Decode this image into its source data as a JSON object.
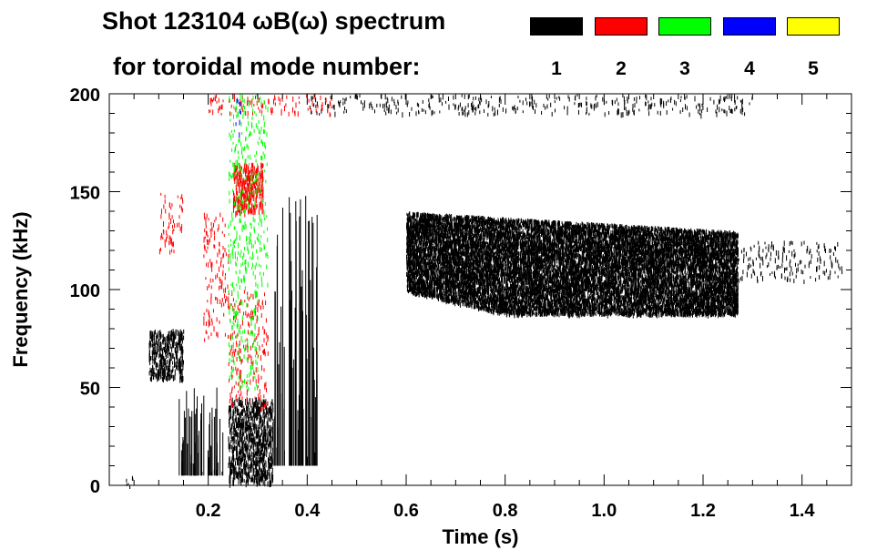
{
  "title": {
    "line1": "Shot 123104 ωB(ω) spectrum",
    "line2": "for toroidal mode number:"
  },
  "legend": {
    "placement": "top-right",
    "entries": [
      {
        "label": "1",
        "color": "#000000"
      },
      {
        "label": "2",
        "color": "#ff0000"
      },
      {
        "label": "3",
        "color": "#00ff00"
      },
      {
        "label": "4",
        "color": "#0000ff"
      },
      {
        "label": "5",
        "color": "#ffff00"
      }
    ]
  },
  "chart_data": {
    "type": "heatmap",
    "xlabel": "Time (s)",
    "ylabel": "Frequency (kHz)",
    "xlim": [
      0.0,
      1.5
    ],
    "ylim": [
      0,
      200
    ],
    "xticks": [
      {
        "value": 0.2,
        "label": "0.2"
      },
      {
        "value": 0.4,
        "label": "0.4"
      },
      {
        "value": 0.6,
        "label": "0.6"
      },
      {
        "value": 0.8,
        "label": "0.8"
      },
      {
        "value": 1.0,
        "label": "1.0"
      },
      {
        "value": 1.2,
        "label": "1.2"
      },
      {
        "value": 1.4,
        "label": "1.4"
      }
    ],
    "yticks": [
      {
        "value": 0,
        "label": "0"
      },
      {
        "value": 50,
        "label": "50"
      },
      {
        "value": 100,
        "label": "100"
      },
      {
        "value": 150,
        "label": "150"
      },
      {
        "value": 200,
        "label": "200"
      }
    ],
    "grid": false,
    "regions": [
      {
        "mode": "1",
        "color": "#000000",
        "t": [
          0.08,
          0.15
        ],
        "f": [
          55,
          80
        ],
        "style": "dense"
      },
      {
        "mode": "1",
        "color": "#000000",
        "t": [
          0.14,
          0.23
        ],
        "f": [
          5,
          50
        ],
        "style": "lines"
      },
      {
        "mode": "1",
        "color": "#000000",
        "t": [
          0.24,
          0.33
        ],
        "f": [
          2,
          45
        ],
        "style": "dense"
      },
      {
        "mode": "1",
        "color": "#000000",
        "t": [
          0.33,
          0.42
        ],
        "f": [
          10,
          150
        ],
        "style": "lines"
      },
      {
        "mode": "1",
        "color": "#000000",
        "t": [
          0.02,
          0.05
        ],
        "f": [
          0,
          5
        ],
        "style": "sparse"
      },
      {
        "mode": "1",
        "color": "#000000",
        "t": [
          0.4,
          1.3
        ],
        "f": [
          190,
          200
        ],
        "style": "sparse"
      },
      {
        "mode": "1",
        "color": "#000000",
        "t": [
          0.6,
          1.27
        ],
        "f": [
          85,
          140
        ],
        "style": "dense-band"
      },
      {
        "mode": "1",
        "color": "#000000",
        "t": [
          1.27,
          1.48
        ],
        "f": [
          105,
          125
        ],
        "style": "sparse"
      },
      {
        "mode": "2",
        "color": "#ff0000",
        "t": [
          0.1,
          0.15
        ],
        "f": [
          120,
          150
        ],
        "style": "sparse"
      },
      {
        "mode": "2",
        "color": "#ff0000",
        "t": [
          0.19,
          0.24
        ],
        "f": [
          75,
          140
        ],
        "style": "sparse"
      },
      {
        "mode": "2",
        "color": "#ff0000",
        "t": [
          0.25,
          0.31
        ],
        "f": [
          140,
          165
        ],
        "style": "dense"
      },
      {
        "mode": "2",
        "color": "#ff0000",
        "t": [
          0.24,
          0.32
        ],
        "f": [
          40,
          100
        ],
        "style": "sparse"
      },
      {
        "mode": "2",
        "color": "#ff0000",
        "t": [
          0.2,
          0.45
        ],
        "f": [
          190,
          200
        ],
        "style": "sparse"
      },
      {
        "mode": "3",
        "color": "#00ff00",
        "t": [
          0.24,
          0.32
        ],
        "f": [
          100,
          200
        ],
        "style": "sparse"
      },
      {
        "mode": "3",
        "color": "#00ff00",
        "t": [
          0.24,
          0.3
        ],
        "f": [
          50,
          100
        ],
        "style": "sparse"
      },
      {
        "mode": "4",
        "color": "#0000ff",
        "t": [
          0.255,
          0.265
        ],
        "f": [
          180,
          200
        ],
        "style": "sparse"
      }
    ]
  }
}
